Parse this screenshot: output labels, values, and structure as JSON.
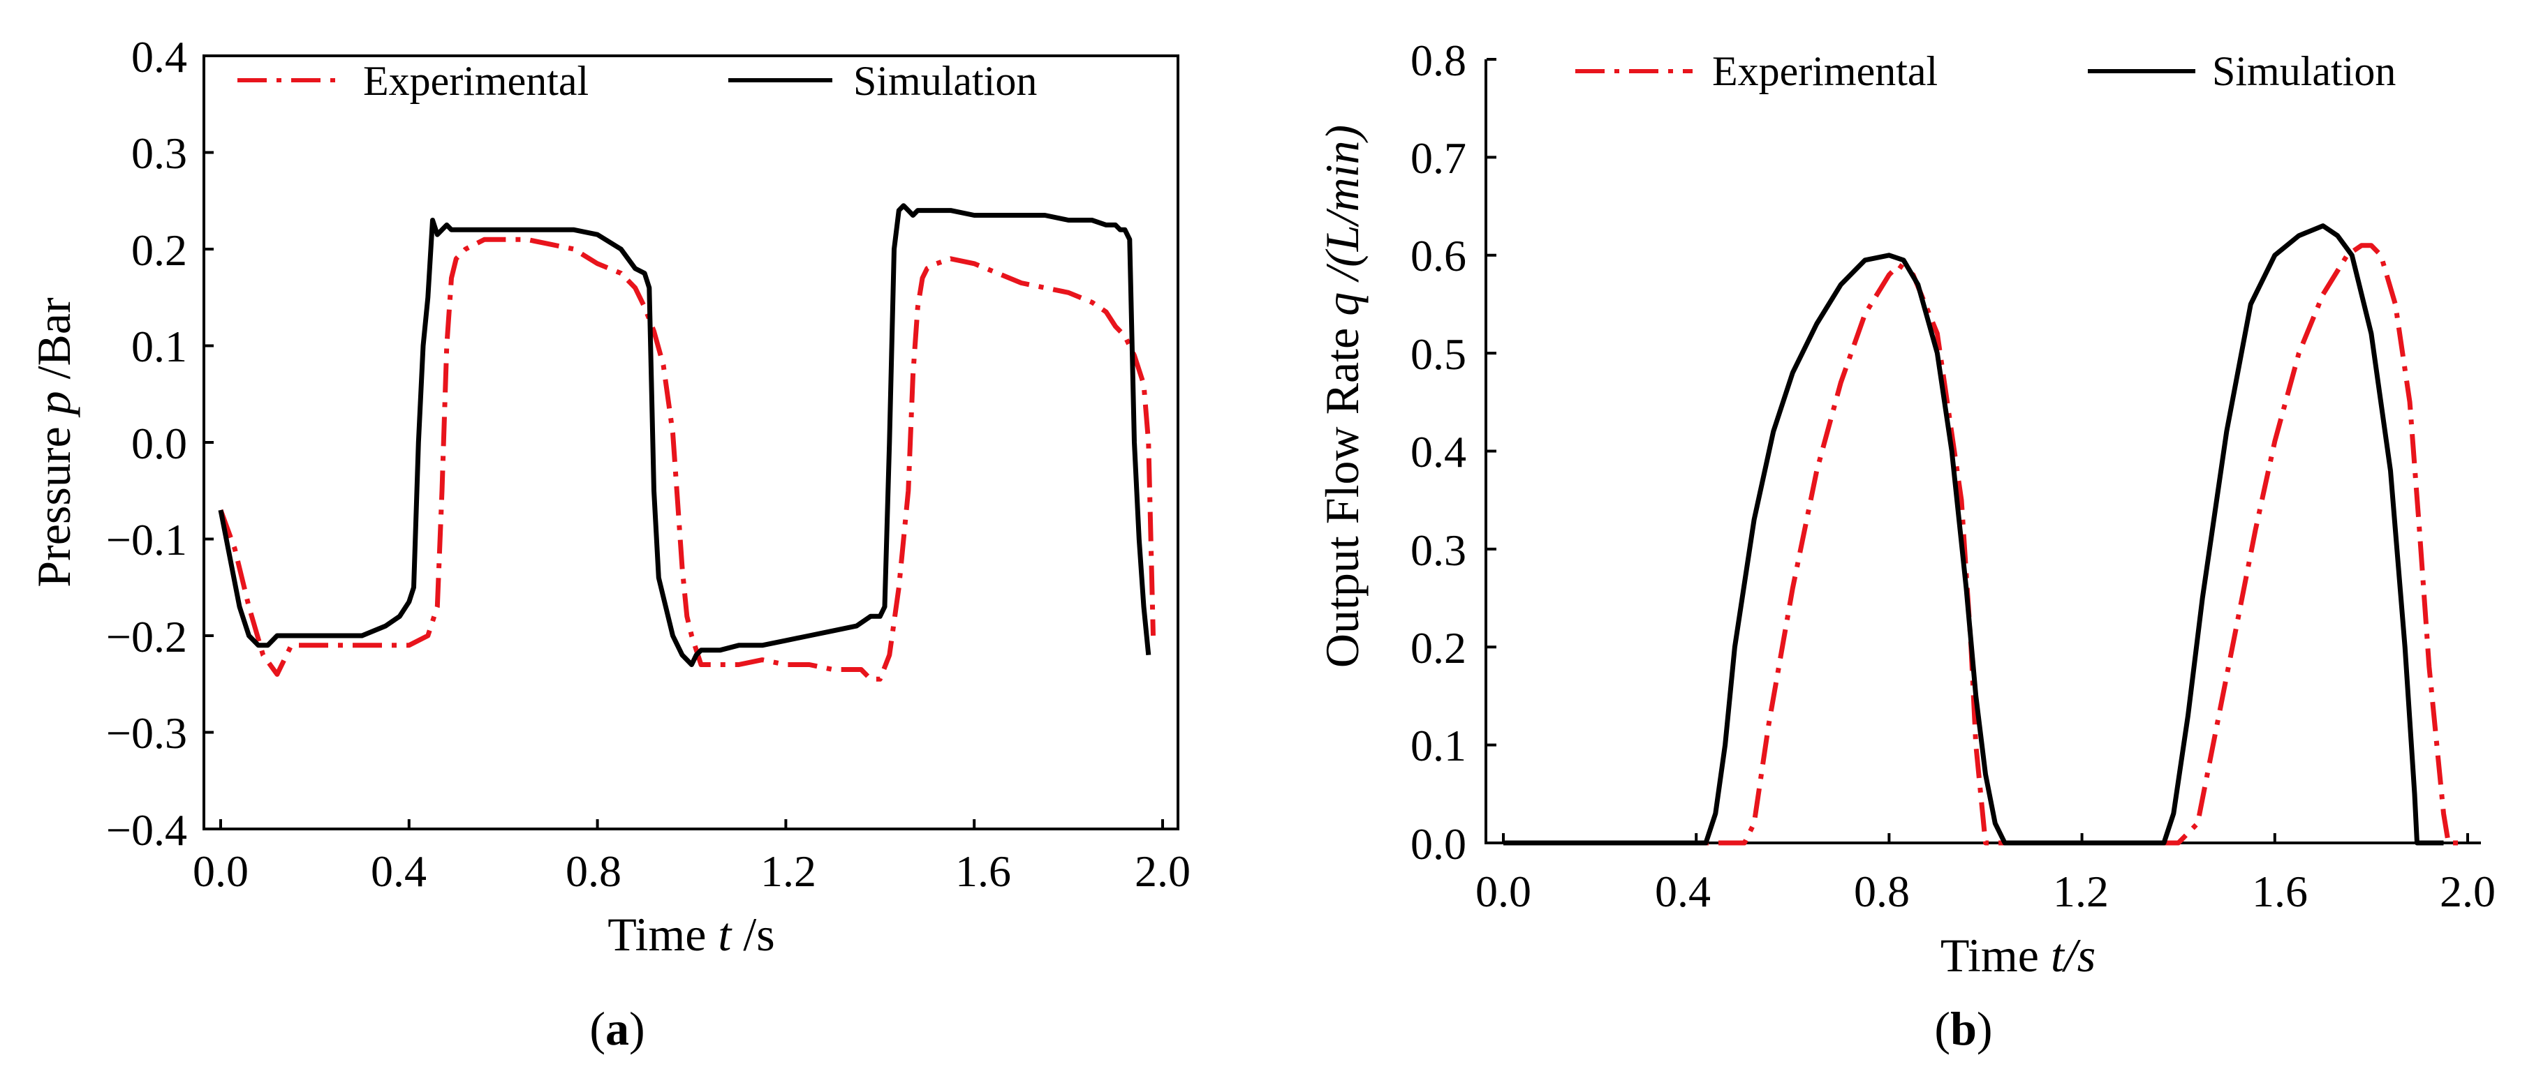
{
  "figure": {
    "caption_a": {
      "open": "(",
      "letter": "a",
      "close": ")"
    },
    "caption_b": {
      "open": "(",
      "letter": "b",
      "close": ")"
    }
  },
  "colors": {
    "experimental": "#e8141c",
    "simulation": "#000000",
    "axis": "#000000"
  },
  "chart_data": [
    {
      "id": "a",
      "type": "line",
      "title": "",
      "xlabel": {
        "prefix": "Time",
        "symbol": "t",
        "unit": " /s"
      },
      "ylabel": {
        "prefix": "Pressure",
        "symbol": "p",
        "unit": " /Bar"
      },
      "xlim": [
        0.0,
        2.0
      ],
      "ylim": [
        -0.4,
        0.4
      ],
      "xticks": [
        0.0,
        0.4,
        0.8,
        1.2,
        1.6,
        2.0
      ],
      "xtick_labels": [
        "0.0",
        "0.4",
        "0.8",
        "1.2",
        "1.6",
        "2.0"
      ],
      "yticks": [
        -0.4,
        -0.3,
        -0.2,
        -0.1,
        0.0,
        0.1,
        0.2,
        0.3,
        0.4
      ],
      "ytick_labels": [
        "−0.4",
        "−0.3",
        "−0.2",
        "−0.1",
        "0.0",
        "0.1",
        "0.2",
        "0.3",
        "0.4"
      ],
      "legend": {
        "placement": "top",
        "entries": [
          "Experimental",
          "Simulation"
        ]
      },
      "series": [
        {
          "name": "Experimental",
          "style": "dash-dot",
          "color_key": "experimental",
          "x": [
            0.0,
            0.03,
            0.06,
            0.09,
            0.12,
            0.15,
            0.2,
            0.25,
            0.3,
            0.35,
            0.4,
            0.44,
            0.46,
            0.47,
            0.48,
            0.49,
            0.5,
            0.52,
            0.56,
            0.6,
            0.65,
            0.7,
            0.75,
            0.8,
            0.85,
            0.88,
            0.9,
            0.92,
            0.94,
            0.96,
            0.97,
            0.98,
            0.99,
            1.0,
            1.02,
            1.05,
            1.1,
            1.15,
            1.2,
            1.25,
            1.3,
            1.33,
            1.36,
            1.38,
            1.4,
            1.42,
            1.44,
            1.46,
            1.47,
            1.48,
            1.49,
            1.5,
            1.52,
            1.55,
            1.6,
            1.65,
            1.7,
            1.75,
            1.8,
            1.85,
            1.88,
            1.9,
            1.92,
            1.94,
            1.96,
            1.97,
            1.98
          ],
          "y": [
            -0.07,
            -0.11,
            -0.17,
            -0.22,
            -0.24,
            -0.21,
            -0.21,
            -0.21,
            -0.21,
            -0.21,
            -0.21,
            -0.2,
            -0.17,
            -0.05,
            0.1,
            0.17,
            0.19,
            0.2,
            0.21,
            0.21,
            0.21,
            0.205,
            0.2,
            0.185,
            0.175,
            0.16,
            0.14,
            0.115,
            0.08,
            0.01,
            -0.06,
            -0.13,
            -0.18,
            -0.2,
            -0.23,
            -0.23,
            -0.23,
            -0.225,
            -0.23,
            -0.23,
            -0.235,
            -0.235,
            -0.235,
            -0.245,
            -0.245,
            -0.22,
            -0.15,
            -0.05,
            0.07,
            0.14,
            0.17,
            0.18,
            0.185,
            0.19,
            0.185,
            0.175,
            0.165,
            0.16,
            0.155,
            0.145,
            0.135,
            0.12,
            0.11,
            0.09,
            0.06,
            0.0,
            -0.2
          ]
        },
        {
          "name": "Simulation",
          "style": "solid",
          "color_key": "simulation",
          "x": [
            0.0,
            0.02,
            0.04,
            0.06,
            0.08,
            0.1,
            0.12,
            0.15,
            0.2,
            0.25,
            0.3,
            0.35,
            0.38,
            0.4,
            0.41,
            0.42,
            0.43,
            0.44,
            0.45,
            0.46,
            0.47,
            0.48,
            0.49,
            0.5,
            0.55,
            0.6,
            0.65,
            0.7,
            0.75,
            0.8,
            0.85,
            0.88,
            0.9,
            0.91,
            0.92,
            0.93,
            0.94,
            0.96,
            0.98,
            1.0,
            1.01,
            1.02,
            1.04,
            1.06,
            1.1,
            1.15,
            1.2,
            1.25,
            1.3,
            1.35,
            1.38,
            1.4,
            1.41,
            1.42,
            1.43,
            1.44,
            1.45,
            1.46,
            1.47,
            1.48,
            1.5,
            1.55,
            1.6,
            1.65,
            1.7,
            1.75,
            1.8,
            1.85,
            1.88,
            1.9,
            1.91,
            1.92,
            1.93,
            1.94,
            1.95,
            1.96,
            1.97
          ],
          "y": [
            -0.07,
            -0.12,
            -0.17,
            -0.2,
            -0.21,
            -0.21,
            -0.2,
            -0.2,
            -0.2,
            -0.2,
            -0.2,
            -0.19,
            -0.18,
            -0.165,
            -0.15,
            0.0,
            0.1,
            0.15,
            0.23,
            0.215,
            0.22,
            0.225,
            0.22,
            0.22,
            0.22,
            0.22,
            0.22,
            0.22,
            0.22,
            0.215,
            0.2,
            0.18,
            0.175,
            0.16,
            -0.05,
            -0.14,
            -0.16,
            -0.2,
            -0.22,
            -0.23,
            -0.22,
            -0.215,
            -0.215,
            -0.215,
            -0.21,
            -0.21,
            -0.205,
            -0.2,
            -0.195,
            -0.19,
            -0.18,
            -0.18,
            -0.17,
            0.0,
            0.2,
            0.24,
            0.245,
            0.24,
            0.235,
            0.24,
            0.24,
            0.24,
            0.235,
            0.235,
            0.235,
            0.235,
            0.23,
            0.23,
            0.225,
            0.225,
            0.22,
            0.22,
            0.21,
            0.0,
            -0.1,
            -0.17,
            -0.22
          ]
        }
      ]
    },
    {
      "id": "b",
      "type": "line",
      "title": "",
      "xlabel": {
        "prefix": "Time ",
        "symbol": "t/s",
        "unit": ""
      },
      "ylabel": {
        "prefix": "Output Flow Rate ",
        "symbol": "q /(L/min)",
        "unit": ""
      },
      "xlim": [
        0.0,
        2.0
      ],
      "ylim": [
        0.0,
        0.8
      ],
      "xticks": [
        0.0,
        0.4,
        0.8,
        1.2,
        1.6,
        2.0
      ],
      "xtick_labels": [
        "0.0",
        "0.4",
        "0.8",
        "1.2",
        "1.6",
        "2.0"
      ],
      "yticks": [
        0.0,
        0.1,
        0.2,
        0.3,
        0.4,
        0.5,
        0.6,
        0.7,
        0.8
      ],
      "ytick_labels": [
        "0.0",
        "0.1",
        "0.2",
        "0.3",
        "0.4",
        "0.5",
        "0.6",
        "0.7",
        "0.8"
      ],
      "legend": {
        "placement": "top",
        "entries": [
          "Experimental",
          "Simulation"
        ]
      },
      "series": [
        {
          "name": "Experimental",
          "style": "dash-dot",
          "color_key": "experimental",
          "x": [
            0.0,
            0.5,
            0.52,
            0.55,
            0.6,
            0.65,
            0.7,
            0.75,
            0.8,
            0.82,
            0.85,
            0.9,
            0.95,
            0.97,
            0.98,
            1.0,
            1.05,
            1.4,
            1.44,
            1.48,
            1.52,
            1.56,
            1.6,
            1.65,
            1.7,
            1.75,
            1.78,
            1.8,
            1.82,
            1.85,
            1.88,
            1.9,
            1.92,
            1.95,
            1.96,
            2.0
          ],
          "y": [
            0.0,
            0.0,
            0.02,
            0.12,
            0.26,
            0.38,
            0.47,
            0.54,
            0.58,
            0.59,
            0.58,
            0.52,
            0.35,
            0.2,
            0.1,
            0.0,
            0.0,
            0.0,
            0.02,
            0.12,
            0.22,
            0.32,
            0.41,
            0.5,
            0.56,
            0.6,
            0.61,
            0.61,
            0.6,
            0.55,
            0.45,
            0.32,
            0.18,
            0.03,
            0.0,
            0.0
          ]
        },
        {
          "name": "Simulation",
          "style": "solid",
          "color_key": "simulation",
          "x": [
            0.0,
            0.42,
            0.44,
            0.46,
            0.48,
            0.52,
            0.56,
            0.6,
            0.65,
            0.7,
            0.75,
            0.8,
            0.83,
            0.86,
            0.9,
            0.93,
            0.96,
            0.98,
            1.0,
            1.02,
            1.04,
            1.1,
            1.37,
            1.39,
            1.42,
            1.45,
            1.5,
            1.55,
            1.6,
            1.65,
            1.7,
            1.73,
            1.76,
            1.8,
            1.84,
            1.87,
            1.89,
            1.895,
            1.9,
            1.95
          ],
          "y": [
            0.0,
            0.0,
            0.03,
            0.1,
            0.2,
            0.33,
            0.42,
            0.48,
            0.53,
            0.57,
            0.595,
            0.6,
            0.595,
            0.57,
            0.5,
            0.4,
            0.26,
            0.15,
            0.07,
            0.02,
            0.0,
            0.0,
            0.0,
            0.03,
            0.13,
            0.25,
            0.42,
            0.55,
            0.6,
            0.62,
            0.63,
            0.62,
            0.6,
            0.52,
            0.38,
            0.2,
            0.05,
            0.0,
            0.0,
            0.0
          ]
        }
      ]
    }
  ]
}
